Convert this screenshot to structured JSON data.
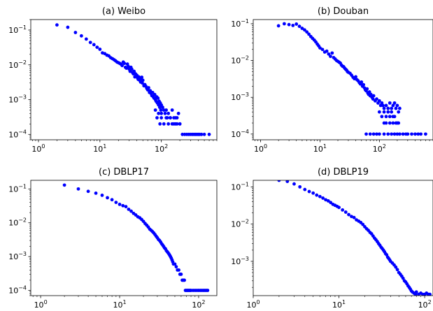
{
  "chart_data": [
    {
      "type": "scatter",
      "title": "(a) Weibo",
      "xscale": "log",
      "yscale": "log",
      "xlim": [
        0.75,
        800
      ],
      "ylim": [
        7e-05,
        0.2
      ],
      "xticks": [
        {
          "base": "10",
          "exp": "0",
          "value": 1
        },
        {
          "base": "10",
          "exp": "1",
          "value": 10
        },
        {
          "base": "10",
          "exp": "2",
          "value": 100
        }
      ],
      "yticks": [
        {
          "base": "10",
          "exp": "−4",
          "value": 0.0001
        },
        {
          "base": "10",
          "exp": "−3",
          "value": 0.001
        },
        {
          "base": "10",
          "exp": "−2",
          "value": 0.01
        },
        {
          "base": "10",
          "exp": "−1",
          "value": 0.1
        }
      ],
      "color": "#0000ff",
      "x": [
        2,
        3,
        4,
        5,
        6,
        7,
        8,
        9,
        10,
        11,
        12,
        13,
        14,
        15,
        16,
        17,
        18,
        19,
        20,
        21,
        22,
        23,
        24,
        25,
        26,
        27,
        28,
        29,
        30,
        31,
        32,
        33,
        34,
        35,
        36,
        37,
        38,
        39,
        40,
        41,
        42,
        43,
        44,
        45,
        46,
        47,
        48,
        49,
        50,
        52,
        54,
        56,
        58,
        60,
        62,
        64,
        66,
        68,
        70,
        72,
        74,
        76,
        78,
        80,
        82,
        84,
        86,
        88,
        90,
        92,
        94,
        96,
        98,
        100,
        100,
        105,
        110,
        115,
        120,
        125,
        130,
        140,
        150,
        160,
        170,
        180,
        190,
        200,
        80,
        85,
        90,
        95,
        100,
        110,
        120,
        130,
        140,
        150,
        160,
        170,
        180,
        200,
        220,
        240,
        260,
        280,
        300,
        320,
        340,
        360,
        380,
        400,
        420,
        450,
        500,
        600
      ],
      "y": [
        0.14,
        0.12,
        0.085,
        0.068,
        0.055,
        0.044,
        0.038,
        0.032,
        0.028,
        0.022,
        0.021,
        0.019,
        0.018,
        0.016,
        0.015,
        0.014,
        0.013,
        0.012,
        0.0115,
        0.011,
        0.0105,
        0.0095,
        0.012,
        0.011,
        0.0085,
        0.008,
        0.0105,
        0.009,
        0.0075,
        0.0065,
        0.0085,
        0.0075,
        0.006,
        0.0055,
        0.0065,
        0.0045,
        0.0055,
        0.0048,
        0.005,
        0.0042,
        0.0038,
        0.0045,
        0.004,
        0.0035,
        0.0032,
        0.0041,
        0.0044,
        0.003,
        0.0036,
        0.0025,
        0.0027,
        0.0024,
        0.0021,
        0.0019,
        0.0022,
        0.0016,
        0.0018,
        0.0015,
        0.0013,
        0.0016,
        0.0012,
        0.0011,
        0.0014,
        0.001,
        0.0009,
        0.0012,
        0.0008,
        0.0011,
        0.0007,
        0.0009,
        0.0006,
        0.0008,
        0.0005,
        0.0007,
        0.0004,
        0.0006,
        0.0005,
        0.0004,
        0.0005,
        0.0003,
        0.0004,
        0.0003,
        0.0005,
        0.0002,
        0.0003,
        0.0002,
        0.0004,
        0.0002,
        0.0005,
        0.0003,
        0.0004,
        0.0002,
        0.0003,
        0.0002,
        0.0003,
        0.0002,
        0.0003,
        0.0002,
        0.0003,
        0.0002,
        0.0003,
        0.0002,
        0.0001,
        0.0001,
        0.0001,
        0.0001,
        0.0001,
        0.0001,
        0.0001,
        0.0001,
        0.0001,
        0.0001,
        0.0001,
        0.0001,
        0.0001,
        0.0001
      ]
    },
    {
      "type": "scatter",
      "title": "(b) Douban",
      "xscale": "log",
      "yscale": "log",
      "xlim": [
        0.75,
        800
      ],
      "ylim": [
        7e-05,
        0.13
      ],
      "xticks": [
        {
          "base": "10",
          "exp": "0",
          "value": 1
        },
        {
          "base": "10",
          "exp": "1",
          "value": 10
        },
        {
          "base": "10",
          "exp": "2",
          "value": 100
        }
      ],
      "yticks": [
        {
          "base": "10",
          "exp": "−4",
          "value": 0.0001
        },
        {
          "base": "10",
          "exp": "−3",
          "value": 0.001
        },
        {
          "base": "10",
          "exp": "−2",
          "value": 0.01
        },
        {
          "base": "10",
          "exp": "−1",
          "value": 0.1
        }
      ],
      "color": "#0000ff",
      "x": [
        2,
        2.5,
        3,
        3.5,
        4,
        4.5,
        5,
        5.5,
        6,
        6.5,
        7,
        7.5,
        8,
        8.5,
        9,
        9.5,
        10,
        11,
        12,
        13,
        14,
        15,
        16,
        17,
        18,
        19,
        20,
        21,
        22,
        23,
        24,
        25,
        26,
        27,
        28,
        29,
        30,
        32,
        34,
        36,
        38,
        40,
        42,
        44,
        46,
        48,
        50,
        52,
        54,
        56,
        58,
        60,
        62,
        64,
        66,
        68,
        70,
        72,
        75,
        78,
        80,
        85,
        90,
        95,
        100,
        105,
        110,
        115,
        120,
        130,
        140,
        150,
        160,
        170,
        180,
        190,
        200,
        210,
        220,
        100,
        110,
        120,
        130,
        140,
        150,
        160,
        170,
        180,
        200,
        120,
        130,
        150,
        170,
        190,
        210,
        60,
        70,
        80,
        90,
        100,
        120,
        140,
        160,
        180,
        200,
        220,
        250,
        280,
        300,
        350,
        400,
        450,
        500,
        600
      ],
      "y": [
        0.088,
        0.1,
        0.095,
        0.09,
        0.098,
        0.085,
        0.075,
        0.068,
        0.06,
        0.052,
        0.045,
        0.04,
        0.036,
        0.032,
        0.028,
        0.025,
        0.022,
        0.02,
        0.017,
        0.018,
        0.015,
        0.013,
        0.016,
        0.012,
        0.011,
        0.01,
        0.0095,
        0.009,
        0.0085,
        0.0075,
        0.007,
        0.0068,
        0.0062,
        0.0058,
        0.0055,
        0.005,
        0.0048,
        0.0045,
        0.004,
        0.0035,
        0.0032,
        0.0036,
        0.003,
        0.0028,
        0.0025,
        0.0023,
        0.0026,
        0.002,
        0.0022,
        0.0018,
        0.0016,
        0.0015,
        0.0017,
        0.0013,
        0.0012,
        0.0014,
        0.0011,
        0.0012,
        0.001,
        0.0009,
        0.0011,
        0.0008,
        0.0009,
        0.0007,
        0.0008,
        0.0006,
        0.0007,
        0.0006,
        0.0005,
        0.0006,
        0.0005,
        0.0007,
        0.0005,
        0.0006,
        0.0007,
        0.0005,
        0.0006,
        0.0004,
        0.0005,
        0.0004,
        0.0003,
        0.0004,
        0.0003,
        0.0004,
        0.0003,
        0.0004,
        0.0003,
        0.0003,
        0.0002,
        0.0002,
        0.0002,
        0.0002,
        0.0002,
        0.0002,
        0.0002,
        0.0001,
        0.0001,
        0.0001,
        0.0001,
        0.0001,
        0.0001,
        0.0001,
        0.0001,
        0.0001,
        0.0001,
        0.0001,
        0.0001,
        0.0001,
        0.0001,
        0.0001,
        0.0001,
        0.0001,
        0.0001,
        0.0001
      ]
    },
    {
      "type": "scatter",
      "title": "(c) DBLP17",
      "xscale": "log",
      "yscale": "log",
      "xlim": [
        0.75,
        170
      ],
      "ylim": [
        7e-05,
        0.18
      ],
      "xticks": [
        {
          "base": "10",
          "exp": "0",
          "value": 1
        },
        {
          "base": "10",
          "exp": "1",
          "value": 10
        },
        {
          "base": "10",
          "exp": "2",
          "value": 100
        }
      ],
      "yticks": [
        {
          "base": "10",
          "exp": "−4",
          "value": 0.0001
        },
        {
          "base": "10",
          "exp": "−3",
          "value": 0.001
        },
        {
          "base": "10",
          "exp": "−2",
          "value": 0.01
        },
        {
          "base": "10",
          "exp": "−1",
          "value": 0.1
        }
      ],
      "color": "#0000ff",
      "x": [
        2,
        3,
        4,
        5,
        6,
        7,
        8,
        9,
        10,
        11,
        12,
        13,
        14,
        15,
        16,
        17,
        18,
        19,
        20,
        21,
        22,
        23,
        24,
        25,
        26,
        27,
        28,
        29,
        30,
        31,
        32,
        33,
        34,
        35,
        36,
        37,
        38,
        39,
        40,
        41,
        42,
        43,
        44,
        45,
        46,
        47,
        48,
        50,
        52,
        54,
        56,
        58,
        60,
        62,
        64,
        66,
        68,
        70,
        72,
        74,
        76,
        78,
        80,
        85,
        90,
        95,
        100,
        105,
        110,
        115,
        120,
        125,
        130
      ],
      "y": [
        0.13,
        0.1,
        0.085,
        0.075,
        0.065,
        0.055,
        0.048,
        0.04,
        0.035,
        0.032,
        0.03,
        0.025,
        0.022,
        0.019,
        0.017,
        0.015,
        0.014,
        0.0125,
        0.011,
        0.0095,
        0.0085,
        0.0075,
        0.0065,
        0.006,
        0.0055,
        0.005,
        0.0045,
        0.004,
        0.0036,
        0.0032,
        0.003,
        0.0027,
        0.0024,
        0.0022,
        0.002,
        0.0018,
        0.0017,
        0.0015,
        0.0014,
        0.0013,
        0.0012,
        0.0011,
        0.001,
        0.0009,
        0.0008,
        0.0007,
        0.0006,
        0.0006,
        0.0005,
        0.0004,
        0.0004,
        0.0003,
        0.0003,
        0.0002,
        0.0002,
        0.0002,
        0.0001,
        0.0001,
        0.0001,
        0.0001,
        0.0001,
        0.0001,
        0.0001,
        0.0001,
        0.0001,
        0.0001,
        0.0001,
        0.0001,
        0.0001,
        0.0001,
        0.0001,
        0.0001,
        0.0001
      ]
    },
    {
      "type": "scatter",
      "title": "(d) DBLP19",
      "xscale": "log",
      "yscale": "log",
      "xlim": [
        1,
        125
      ],
      "ylim": [
        0.00012,
        0.15
      ],
      "xticks": [
        {
          "base": "10",
          "exp": "0",
          "value": 1
        },
        {
          "base": "10",
          "exp": "1",
          "value": 10
        },
        {
          "base": "10",
          "exp": "2",
          "value": 100
        }
      ],
      "yticks": [
        {
          "base": "10",
          "exp": "−3",
          "value": 0.001
        },
        {
          "base": "10",
          "exp": "−2",
          "value": 0.01
        },
        {
          "base": "10",
          "exp": "−1",
          "value": 0.1
        }
      ],
      "color": "#0000ff",
      "x": [
        2,
        2.5,
        3,
        3.5,
        4,
        4.5,
        5,
        5.5,
        6,
        6.5,
        7,
        7.5,
        8,
        8.5,
        9,
        9.5,
        10,
        11,
        12,
        13,
        14,
        15,
        16,
        17,
        18,
        19,
        20,
        21,
        22,
        23,
        24,
        25,
        26,
        27,
        28,
        29,
        30,
        31,
        32,
        33,
        34,
        35,
        36,
        37,
        38,
        39,
        40,
        42,
        44,
        46,
        48,
        50,
        52,
        54,
        56,
        58,
        60,
        62,
        64,
        66,
        68,
        70,
        72,
        75,
        78,
        80,
        85,
        90,
        95,
        100,
        105,
        110,
        115
      ],
      "y": [
        0.15,
        0.14,
        0.12,
        0.1,
        0.085,
        0.075,
        0.068,
        0.06,
        0.055,
        0.05,
        0.045,
        0.042,
        0.038,
        0.034,
        0.032,
        0.03,
        0.028,
        0.024,
        0.021,
        0.018,
        0.016,
        0.015,
        0.013,
        0.012,
        0.011,
        0.0098,
        0.0085,
        0.0075,
        0.0068,
        0.006,
        0.0055,
        0.0048,
        0.0042,
        0.0038,
        0.0034,
        0.003,
        0.0027,
        0.0024,
        0.0022,
        0.002,
        0.0018,
        0.0016,
        0.0015,
        0.0013,
        0.0012,
        0.0011,
        0.001,
        0.0009,
        0.0008,
        0.0007,
        0.0006,
        0.0005,
        0.00045,
        0.0004,
        0.00035,
        0.0003,
        0.00028,
        0.00025,
        0.00022,
        0.0002,
        0.00018,
        0.00016,
        0.00015,
        0.00014,
        0.00013,
        0.00015,
        0.00013,
        0.00014,
        0.00013,
        0.00013,
        0.00014,
        0.00013,
        0.00013
      ]
    }
  ]
}
